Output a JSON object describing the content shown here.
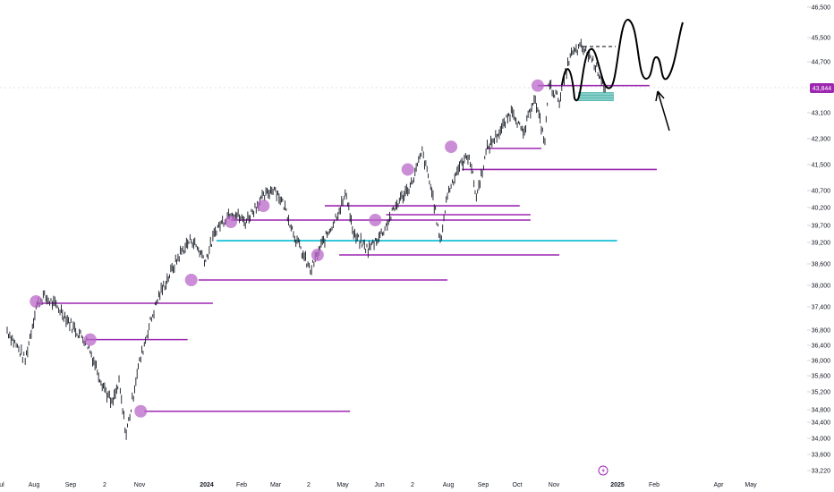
{
  "chart_data": {
    "type": "candlestick",
    "y_ticks": [
      33220,
      33600,
      34000,
      34400,
      34800,
      35200,
      35600,
      36000,
      36400,
      36800,
      37400,
      38000,
      38600,
      39200,
      39700,
      40200,
      40700,
      41500,
      42300,
      43100,
      44700,
      45500,
      46500
    ],
    "y_tick_labels": [
      "33,220",
      "33,600",
      "34,000",
      "34,400",
      "34,800",
      "35,200",
      "35,600",
      "36,000",
      "36,400",
      "36,800",
      "37,400",
      "38,000",
      "38,600",
      "39,200",
      "39,700",
      "40,200",
      "40,700",
      "41,500",
      "42,300",
      "43,100",
      "44,700",
      "45,500",
      "46,500"
    ],
    "last_price_label": "43,844",
    "last_price": 43844,
    "x_labels": [
      "ul",
      "Aug",
      "Sep",
      "2",
      "Nov",
      "2024",
      "Feb",
      "Mar",
      "2",
      "May",
      "Jun",
      "2",
      "Aug",
      "Sep",
      "Oct",
      "Nov",
      "2025",
      "Feb",
      "Apr",
      "May"
    ],
    "price_path": [
      [
        2023.5,
        36800
      ],
      [
        2023.55,
        36000
      ],
      [
        2023.58,
        37400
      ],
      [
        2023.6,
        37700
      ],
      [
        2023.65,
        37300
      ],
      [
        2023.68,
        36900
      ],
      [
        2023.72,
        36500
      ],
      [
        2023.76,
        35500
      ],
      [
        2023.79,
        34900
      ],
      [
        2023.81,
        35400
      ],
      [
        2023.83,
        34100
      ],
      [
        2023.86,
        35700
      ],
      [
        2023.89,
        36800
      ],
      [
        2023.92,
        37700
      ],
      [
        2023.95,
        38300
      ],
      [
        2023.98,
        38900
      ],
      [
        2024.01,
        39300
      ],
      [
        2024.05,
        38700
      ],
      [
        2024.08,
        39600
      ],
      [
        2024.12,
        40100
      ],
      [
        2024.16,
        39800
      ],
      [
        2024.2,
        40400
      ],
      [
        2024.24,
        40800
      ],
      [
        2024.27,
        40200
      ],
      [
        2024.3,
        39300
      ],
      [
        2024.34,
        38400
      ],
      [
        2024.37,
        39100
      ],
      [
        2024.4,
        39700
      ],
      [
        2024.44,
        40600
      ],
      [
        2024.46,
        39400
      ],
      [
        2024.5,
        39000
      ],
      [
        2024.54,
        39500
      ],
      [
        2024.58,
        40300
      ],
      [
        2024.62,
        40900
      ],
      [
        2024.65,
        41900
      ],
      [
        2024.68,
        40500
      ],
      [
        2024.7,
        39200
      ],
      [
        2024.72,
        40600
      ],
      [
        2024.75,
        41400
      ],
      [
        2024.78,
        41800
      ],
      [
        2024.8,
        40500
      ],
      [
        2024.83,
        42000
      ],
      [
        2024.87,
        42600
      ],
      [
        2024.9,
        43200
      ],
      [
        2024.93,
        42400
      ],
      [
        2024.96,
        43600
      ],
      [
        2024.99,
        42200
      ],
      [
        2025.0,
        44000
      ],
      [
        2025.03,
        43500
      ],
      [
        2025.06,
        44900
      ],
      [
        2025.09,
        45200
      ],
      [
        2025.12,
        44800
      ],
      [
        2025.15,
        44100
      ],
      [
        2025.16,
        43700
      ]
    ],
    "horizontal_levels": [
      {
        "y": 34750,
        "x0": 2023.88,
        "x1": 2024.45,
        "color": "#9c27b0"
      },
      {
        "y": 36550,
        "x0": 2023.72,
        "x1": 2024.0,
        "color": "#9c27b0"
      },
      {
        "y": 37500,
        "x0": 2023.58,
        "x1": 2024.07,
        "color": "#9c27b0"
      },
      {
        "y": 38150,
        "x0": 2024.03,
        "x1": 2024.72,
        "color": "#9c27b0"
      },
      {
        "y": 38850,
        "x0": 2024.42,
        "x1": 2025.03,
        "color": "#9c27b0"
      },
      {
        "y": 39250,
        "x0": 2024.08,
        "x1": 2025.19,
        "color": "#00bcd4"
      },
      {
        "y": 39850,
        "x0": 2024.12,
        "x1": 2024.95,
        "color": "#9c27b0"
      },
      {
        "y": 40000,
        "x0": 2024.55,
        "x1": 2024.95,
        "color": "#9c27b0"
      },
      {
        "y": 40250,
        "x0": 2024.38,
        "x1": 2024.92,
        "color": "#9c27b0"
      },
      {
        "y": 41350,
        "x0": 2024.76,
        "x1": 2025.3,
        "color": "#9c27b0"
      },
      {
        "y": 42000,
        "x0": 2024.83,
        "x1": 2024.98,
        "color": "#9c27b0"
      },
      {
        "y": 43950,
        "x0": 2024.97,
        "x1": 2025.28,
        "color": "#9c27b0"
      }
    ],
    "circle_markers": [
      [
        2023.58,
        37550
      ],
      [
        2023.73,
        36550
      ],
      [
        2023.87,
        34750
      ],
      [
        2024.01,
        38150
      ],
      [
        2024.12,
        39800
      ],
      [
        2024.21,
        40250
      ],
      [
        2024.36,
        38850
      ],
      [
        2024.52,
        39850
      ],
      [
        2024.61,
        41350
      ],
      [
        2024.73,
        42050
      ],
      [
        2024.97,
        43950
      ]
    ]
  }
}
